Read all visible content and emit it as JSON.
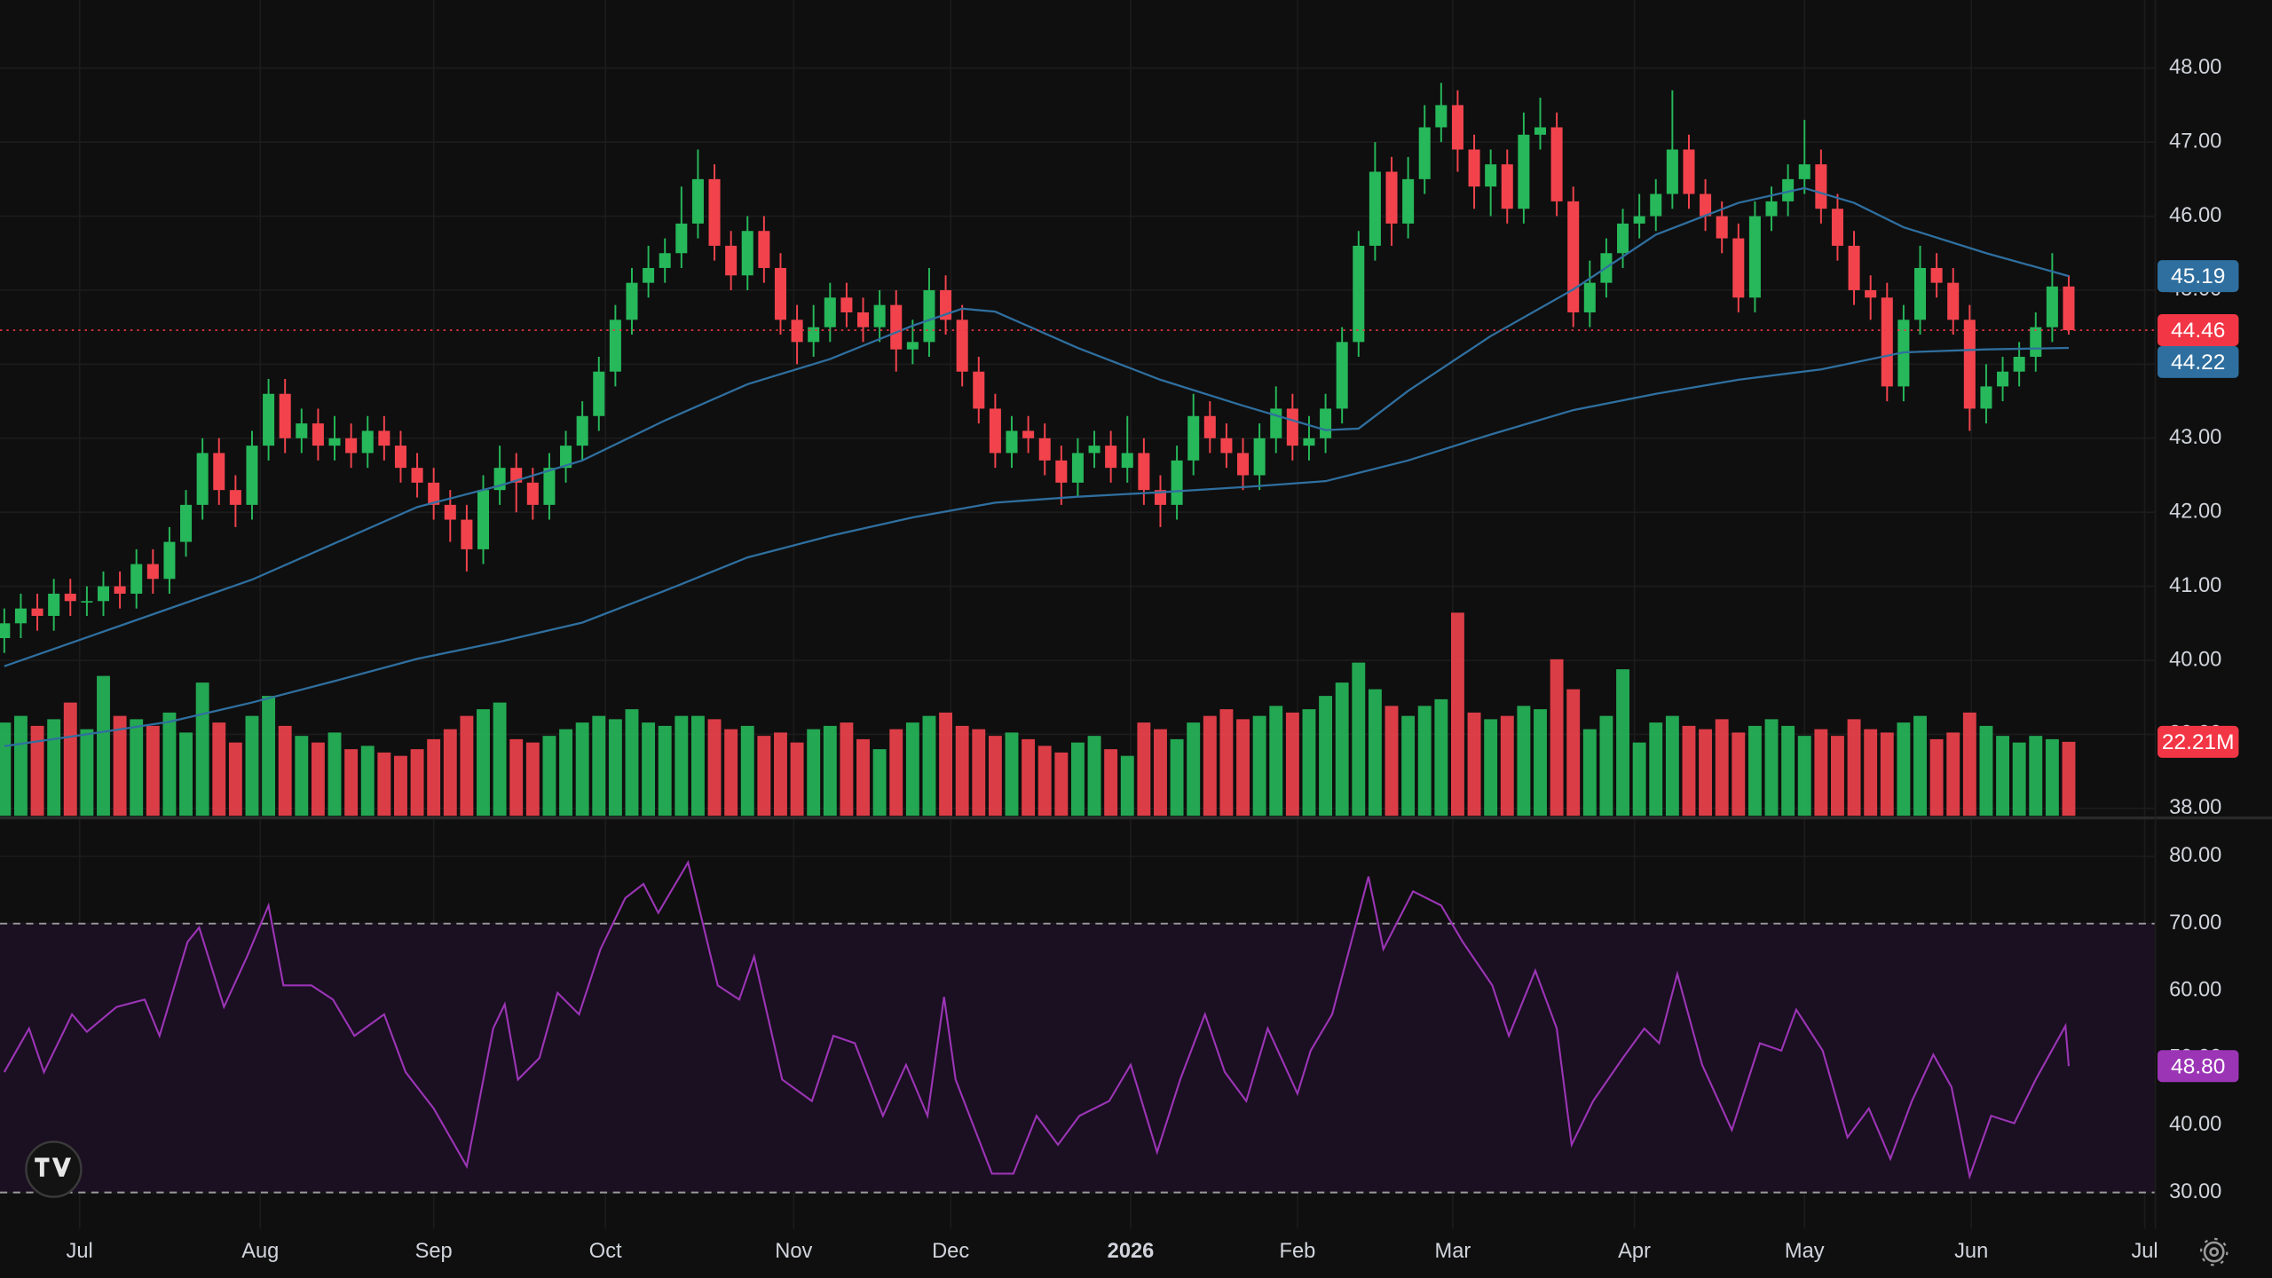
{
  "chart_data": [
    {
      "type": "candlestick",
      "up_color": "#26b85a",
      "down_color": "#f2434d",
      "xlim": [
        -0.26,
        130.2
      ],
      "ylim": [
        37.9,
        48.92
      ],
      "xticks": [
        {
          "value": 4.56,
          "label": "Jul"
        },
        {
          "value": 15.5,
          "label": "Aug"
        },
        {
          "value": 26.0,
          "label": "Sep"
        },
        {
          "value": 36.4,
          "label": "Oct"
        },
        {
          "value": 47.8,
          "label": "Nov"
        },
        {
          "value": 57.3,
          "label": "Dec"
        },
        {
          "value": 68.2,
          "label": "2026",
          "bold": true
        },
        {
          "value": 78.3,
          "label": "Feb"
        },
        {
          "value": 87.7,
          "label": "Mar"
        },
        {
          "value": 98.7,
          "label": "Apr"
        },
        {
          "value": 109.0,
          "label": "May"
        },
        {
          "value": 119.1,
          "label": "Jun"
        },
        {
          "value": 129.6,
          "label": "Jul"
        }
      ],
      "yticks": [
        {
          "value": 38,
          "label": "38.00"
        },
        {
          "value": 39,
          "label": "39.00"
        },
        {
          "value": 40,
          "label": "40.00"
        },
        {
          "value": 41,
          "label": "41.00"
        },
        {
          "value": 42,
          "label": "42.00"
        },
        {
          "value": 43,
          "label": "43.00"
        },
        {
          "value": 44,
          "label": "44.00"
        },
        {
          "value": 45,
          "label": "45.00"
        },
        {
          "value": 46,
          "label": "46.00"
        },
        {
          "value": 47,
          "label": "47.00"
        },
        {
          "value": 48,
          "label": "48.00"
        }
      ],
      "grid": true,
      "open": [
        40.3,
        40.5,
        40.7,
        40.6,
        40.9,
        40.8,
        40.8,
        41.0,
        40.9,
        41.3,
        41.1,
        41.6,
        42.1,
        42.8,
        42.3,
        42.1,
        42.9,
        43.6,
        43.0,
        43.2,
        42.9,
        43.0,
        42.8,
        43.1,
        42.9,
        42.6,
        42.4,
        42.1,
        41.9,
        41.5,
        42.3,
        42.6,
        42.4,
        42.1,
        42.6,
        42.9,
        43.3,
        43.9,
        44.6,
        45.1,
        45.3,
        45.5,
        45.9,
        46.5,
        45.6,
        45.2,
        45.8,
        45.3,
        44.6,
        44.3,
        44.5,
        44.9,
        44.7,
        44.5,
        44.8,
        44.2,
        44.3,
        45.0,
        44.6,
        43.9,
        43.4,
        42.8,
        43.1,
        43.0,
        42.7,
        42.4,
        42.8,
        42.9,
        42.6,
        42.8,
        42.3,
        42.1,
        42.7,
        43.3,
        43.0,
        42.8,
        42.5,
        43.0,
        43.4,
        42.9,
        43.0,
        43.4,
        44.3,
        45.6,
        46.6,
        45.9,
        46.5,
        47.2,
        47.5,
        46.9,
        46.4,
        46.7,
        46.1,
        47.1,
        47.2,
        46.2,
        44.7,
        45.1,
        45.5,
        45.9,
        46.0,
        46.3,
        46.9,
        46.3,
        46.0,
        45.7,
        44.9,
        46.0,
        46.2,
        46.5,
        46.7,
        46.1,
        45.6,
        45.0,
        44.9,
        43.7,
        44.6,
        45.3,
        45.1,
        44.6,
        43.4,
        43.7,
        43.9,
        44.1,
        44.5,
        45.05
      ],
      "high": [
        40.7,
        40.9,
        40.9,
        41.1,
        41.1,
        41.0,
        41.2,
        41.2,
        41.5,
        41.5,
        41.8,
        42.3,
        43.0,
        43.0,
        42.5,
        43.1,
        43.8,
        43.8,
        43.4,
        43.4,
        43.3,
        43.2,
        43.3,
        43.3,
        43.1,
        42.8,
        42.6,
        42.3,
        42.1,
        42.5,
        42.9,
        42.8,
        42.6,
        42.8,
        43.1,
        43.5,
        44.1,
        44.8,
        45.3,
        45.6,
        45.7,
        46.4,
        46.9,
        46.7,
        45.8,
        46.0,
        46.0,
        45.5,
        44.8,
        44.8,
        45.1,
        45.1,
        44.9,
        45.0,
        45.0,
        44.6,
        45.3,
        45.2,
        44.8,
        44.1,
        43.6,
        43.3,
        43.3,
        43.2,
        42.9,
        43.0,
        43.1,
        43.1,
        43.3,
        43.0,
        42.5,
        42.9,
        43.6,
        43.5,
        43.2,
        43.0,
        43.2,
        43.7,
        43.6,
        43.3,
        43.6,
        44.5,
        45.8,
        47.0,
        46.8,
        46.8,
        47.5,
        47.8,
        47.7,
        47.1,
        46.9,
        46.9,
        47.4,
        47.6,
        47.4,
        46.4,
        45.4,
        45.7,
        46.1,
        46.3,
        46.5,
        47.7,
        47.1,
        46.5,
        46.2,
        45.9,
        46.2,
        46.4,
        46.7,
        47.3,
        46.9,
        46.3,
        45.8,
        45.2,
        45.1,
        44.8,
        45.6,
        45.5,
        45.3,
        44.8,
        44.0,
        44.1,
        44.3,
        44.7,
        45.5,
        45.2
      ],
      "low": [
        40.1,
        40.3,
        40.4,
        40.4,
        40.6,
        40.6,
        40.6,
        40.7,
        40.7,
        40.9,
        40.9,
        41.4,
        41.9,
        42.1,
        41.8,
        41.9,
        42.7,
        42.8,
        42.8,
        42.7,
        42.7,
        42.6,
        42.6,
        42.7,
        42.4,
        42.2,
        41.9,
        41.6,
        41.2,
        41.3,
        42.1,
        42.0,
        41.9,
        41.9,
        42.4,
        42.7,
        43.1,
        43.7,
        44.4,
        44.9,
        45.1,
        45.3,
        45.7,
        45.4,
        45.0,
        45.0,
        45.1,
        44.4,
        44.0,
        44.1,
        44.3,
        44.5,
        44.3,
        44.3,
        43.9,
        44.0,
        44.1,
        44.4,
        43.7,
        43.2,
        42.6,
        42.6,
        42.8,
        42.5,
        42.1,
        42.2,
        42.6,
        42.4,
        42.4,
        42.1,
        41.8,
        41.9,
        42.5,
        42.8,
        42.6,
        42.3,
        42.3,
        42.8,
        42.7,
        42.7,
        42.8,
        43.2,
        44.1,
        45.4,
        45.6,
        45.7,
        46.3,
        47.0,
        46.6,
        46.1,
        46.0,
        45.9,
        45.9,
        46.9,
        46.0,
        44.5,
        44.5,
        44.9,
        45.3,
        45.7,
        45.8,
        46.1,
        46.1,
        45.8,
        45.5,
        44.7,
        44.7,
        45.8,
        46.0,
        46.3,
        45.9,
        45.4,
        44.8,
        44.6,
        43.5,
        43.5,
        44.4,
        44.9,
        44.4,
        43.1,
        43.2,
        43.5,
        43.7,
        43.9,
        44.3,
        44.4
      ],
      "close": [
        40.5,
        40.7,
        40.6,
        40.9,
        40.8,
        40.8,
        41.0,
        40.9,
        41.3,
        41.1,
        41.6,
        42.1,
        42.8,
        42.3,
        42.1,
        42.9,
        43.6,
        43.0,
        43.2,
        42.9,
        43.0,
        42.8,
        43.1,
        42.9,
        42.6,
        42.4,
        42.1,
        41.9,
        41.5,
        42.3,
        42.6,
        42.4,
        42.1,
        42.6,
        42.9,
        43.3,
        43.9,
        44.6,
        45.1,
        45.3,
        45.5,
        45.9,
        46.5,
        45.6,
        45.2,
        45.8,
        45.3,
        44.6,
        44.3,
        44.5,
        44.9,
        44.7,
        44.5,
        44.8,
        44.2,
        44.3,
        45.0,
        44.6,
        43.9,
        43.4,
        42.8,
        43.1,
        43.0,
        42.7,
        42.4,
        42.8,
        42.9,
        42.6,
        42.8,
        42.3,
        42.1,
        42.7,
        43.3,
        43.0,
        42.8,
        42.5,
        43.0,
        43.4,
        42.9,
        43.0,
        43.4,
        44.3,
        45.6,
        46.6,
        45.9,
        46.5,
        47.2,
        47.5,
        46.9,
        46.4,
        46.7,
        46.1,
        47.1,
        47.2,
        46.2,
        44.7,
        45.1,
        45.5,
        45.9,
        46.0,
        46.3,
        46.9,
        46.3,
        46.0,
        45.7,
        44.9,
        46.0,
        46.2,
        46.5,
        46.7,
        46.1,
        45.6,
        45.0,
        44.9,
        43.7,
        44.6,
        45.3,
        45.1,
        44.6,
        43.4,
        43.7,
        43.9,
        44.1,
        44.5,
        45.05,
        44.46
      ],
      "series": [
        {
          "color": "#2f6f9f",
          "x": [
            0,
            5,
            10,
            15,
            20,
            25,
            30,
            35,
            40,
            45,
            50,
            55,
            58,
            60,
            65,
            70,
            75,
            80,
            82,
            85,
            90,
            95,
            100,
            105,
            109,
            112,
            115,
            120,
            125
          ],
          "values": [
            39.92,
            40.31,
            40.7,
            41.09,
            41.58,
            42.07,
            42.36,
            42.7,
            43.24,
            43.73,
            44.07,
            44.52,
            44.75,
            44.71,
            44.22,
            43.79,
            43.44,
            43.11,
            43.13,
            43.64,
            44.38,
            45.01,
            45.75,
            46.18,
            46.38,
            46.18,
            45.85,
            45.5,
            45.19
          ]
        },
        {
          "color": "#2f6f9f",
          "x": [
            0,
            5,
            10,
            15,
            20,
            25,
            30,
            35,
            40,
            45,
            50,
            55,
            60,
            65,
            70,
            75,
            80,
            85,
            90,
            95,
            100,
            105,
            110,
            115,
            120,
            125
          ],
          "values": [
            38.84,
            39.0,
            39.17,
            39.43,
            39.72,
            40.02,
            40.25,
            40.51,
            40.94,
            41.39,
            41.68,
            41.93,
            42.13,
            42.21,
            42.27,
            42.34,
            42.42,
            42.7,
            43.05,
            43.38,
            43.6,
            43.79,
            43.93,
            44.16,
            44.2,
            44.22
          ]
        }
      ],
      "tags": [
        {
          "value": 45.19,
          "label": "45.19",
          "color": "#2f6f9f"
        },
        {
          "value": 44.46,
          "label": "44.46",
          "color": "#f23645",
          "line": true
        },
        {
          "value": 44.22,
          "label": "44.22",
          "color": "#2f6f9f"
        }
      ]
    },
    {
      "type": "bar",
      "ylim": [
        0,
        245
      ],
      "values": [
        28,
        30,
        27,
        29,
        34,
        26,
        42,
        30,
        29,
        27,
        31,
        25,
        40,
        28,
        22,
        30,
        36,
        27,
        24,
        22,
        25,
        20,
        21,
        19,
        18,
        20,
        23,
        26,
        30,
        32,
        34,
        23,
        22,
        24,
        26,
        28,
        30,
        29,
        32,
        28,
        27,
        30,
        30,
        29,
        26,
        27,
        24,
        25,
        22,
        26,
        27,
        28,
        23,
        20,
        26,
        28,
        30,
        31,
        27,
        26,
        24,
        25,
        23,
        21,
        19,
        22,
        24,
        20,
        18,
        28,
        26,
        23,
        28,
        30,
        32,
        29,
        30,
        33,
        31,
        32,
        36,
        40,
        46,
        38,
        33,
        30,
        33,
        35,
        61,
        31,
        29,
        30,
        33,
        32,
        47,
        38,
        26,
        30,
        44,
        22,
        28,
        30,
        27,
        26,
        29,
        25,
        27,
        29,
        27,
        24,
        26,
        24,
        29,
        26,
        25,
        28,
        30,
        23,
        25,
        31,
        27,
        24,
        22,
        24,
        23,
        22.21
      ],
      "tag": {
        "value": 22.21,
        "label": "22.21M",
        "color": "#f23645"
      }
    },
    {
      "type": "line",
      "color": "#9b35b5",
      "band_color": "#1b0f22",
      "ylim": [
        24.6,
        85.4
      ],
      "yticks": [
        {
          "value": 30,
          "label": "30.00"
        },
        {
          "value": 40,
          "label": "40.00"
        },
        {
          "value": 50,
          "label": "50.00"
        },
        {
          "value": 60,
          "label": "60.00"
        },
        {
          "value": 70,
          "label": "70.00"
        },
        {
          "value": 80,
          "label": "80.00"
        }
      ],
      "band": [
        30,
        70
      ],
      "x": [
        0,
        1.5,
        2.4,
        4.1,
        5,
        6.8,
        8.5,
        9.4,
        11.1,
        11.8,
        13.3,
        14.7,
        16,
        16.9,
        18.6,
        19.9,
        21.2,
        23,
        24.3,
        26,
        28,
        29.6,
        30.3,
        31.1,
        32.4,
        33.5,
        34.8,
        36.1,
        37.6,
        38.7,
        39.6,
        41.4,
        43.2,
        44.5,
        45.4,
        47.1,
        48.9,
        50.2,
        51.5,
        53.2,
        54.6,
        55.9,
        56.9,
        57.6,
        59.8,
        61.1,
        62.5,
        63.8,
        65.1,
        66.9,
        68.2,
        69.8,
        71.2,
        72.7,
        73.9,
        75.2,
        76.5,
        78.3,
        79.1,
        80.4,
        82.6,
        83.5,
        85.3,
        87,
        88.3,
        90.1,
        91.1,
        92.7,
        94,
        94.9,
        96.2,
        98,
        99.3,
        100.2,
        101.3,
        102.8,
        104.6,
        106.3,
        107.6,
        108.5,
        110.1,
        111.6,
        112.9,
        114.2,
        115.5,
        116.8,
        117.9,
        119,
        120.3,
        121.7,
        123,
        124.8,
        125
      ],
      "values": [
        47.9,
        54.4,
        47.9,
        56.5,
        53.9,
        57.6,
        58.7,
        53.3,
        67.3,
        69.4,
        57.6,
        65.1,
        72.7,
        60.8,
        60.8,
        58.7,
        53.3,
        56.5,
        47.9,
        42.5,
        33.9,
        54.4,
        58.0,
        46.8,
        50.0,
        59.7,
        56.5,
        66.2,
        73.8,
        75.9,
        71.6,
        79.1,
        60.8,
        58.7,
        65.1,
        46.8,
        43.6,
        53.3,
        52.2,
        41.4,
        49.0,
        41.4,
        59.1,
        46.8,
        32.8,
        32.8,
        41.4,
        37.1,
        41.4,
        43.6,
        49.0,
        36.0,
        46.8,
        56.5,
        47.9,
        43.6,
        54.4,
        44.7,
        51.1,
        56.5,
        77.0,
        66.2,
        74.8,
        72.7,
        67.3,
        60.8,
        53.3,
        63.0,
        54.4,
        37.1,
        43.6,
        50.0,
        54.4,
        52.2,
        62.5,
        49.0,
        39.3,
        52.2,
        51.1,
        57.2,
        51.1,
        38.2,
        42.5,
        35.0,
        43.6,
        50.5,
        45.7,
        32.4,
        41.4,
        40.3,
        46.8,
        54.8,
        48.8
      ],
      "tag": {
        "value": 48.8,
        "label": "48.80",
        "color": "#9b35b5"
      }
    }
  ]
}
